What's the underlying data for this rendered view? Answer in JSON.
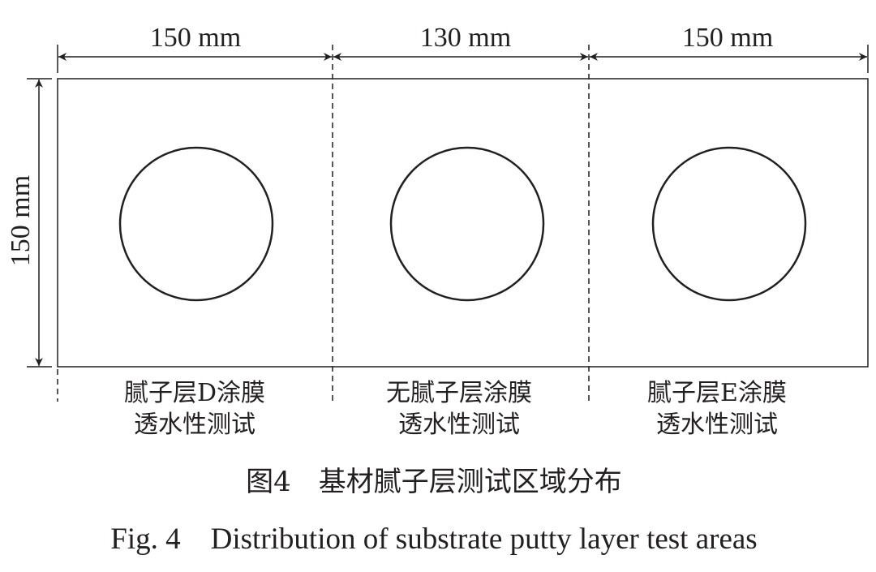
{
  "dimensions": {
    "left_width": "150 mm",
    "middle_width": "130 mm",
    "right_width": "150 mm",
    "height": "150 mm"
  },
  "regions": [
    {
      "line1": "腻子层D涂膜",
      "line2": "透水性测试"
    },
    {
      "line1": "无腻子层涂膜",
      "line2": "透水性测试"
    },
    {
      "line1": "腻子层E涂膜",
      "line2": "透水性测试"
    }
  ],
  "caption": {
    "cn": "图4　基材腻子层测试区域分布",
    "en": "Fig. 4　Distribution of substrate putty layer test areas"
  },
  "colors": {
    "line": "#231f20"
  }
}
